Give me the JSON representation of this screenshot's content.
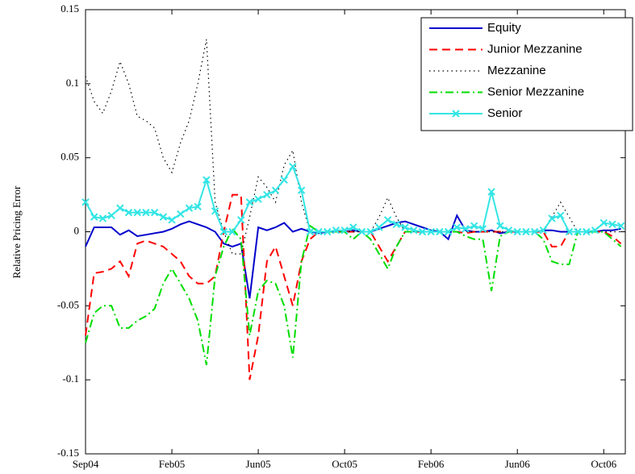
{
  "chart_data": {
    "type": "line",
    "y_label": "Relative Pricing Error",
    "categories": [
      "Sep04",
      null,
      null,
      null,
      null,
      null,
      null,
      null,
      null,
      null,
      "Feb05",
      null,
      null,
      null,
      null,
      null,
      null,
      null,
      null,
      null,
      "Jun05",
      null,
      null,
      null,
      null,
      null,
      null,
      null,
      null,
      null,
      "Oct05",
      null,
      null,
      null,
      null,
      null,
      null,
      null,
      null,
      null,
      "Feb06",
      null,
      null,
      null,
      null,
      null,
      null,
      null,
      null,
      null,
      "Jun06",
      null,
      null,
      null,
      null,
      null,
      null,
      null,
      null,
      null,
      "Oct06",
      null,
      null
    ],
    "ylim": [
      -0.15,
      0.15
    ],
    "yticks": [
      -0.15,
      -0.1,
      -0.05,
      0,
      0.05,
      0.1,
      0.15
    ],
    "legend": "upper right",
    "series": [
      {
        "name": "Equity",
        "color": "#0000cc",
        "linestyle": "solid",
        "values": [
          -0.01,
          0.003,
          0.003,
          0.003,
          -0.002,
          0.001,
          -0.003,
          -0.002,
          -0.001,
          0,
          0.002,
          0.005,
          0.007,
          0.005,
          0.003,
          0,
          -0.008,
          -0.01,
          -0.008,
          -0.045,
          0.003,
          0.001,
          0.003,
          0.006,
          0,
          0.002,
          0,
          -0.001,
          0,
          0,
          0,
          0.001,
          0,
          0,
          0.002,
          0.004,
          0.006,
          0.007,
          0.005,
          0.003,
          0.001,
          0,
          -0.005,
          0.011,
          0.001,
          0,
          0,
          0.001,
          -0.001,
          0,
          0,
          0,
          0,
          0.001,
          0.001,
          0,
          0,
          0,
          0,
          0,
          0.001,
          0.001,
          0.002
        ]
      },
      {
        "name": "Junior Mezzanine",
        "color": "#ff0000",
        "linestyle": "dashed",
        "values": [
          -0.07,
          -0.028,
          -0.027,
          -0.025,
          -0.02,
          -0.03,
          -0.008,
          -0.006,
          -0.008,
          -0.01,
          -0.015,
          -0.02,
          -0.03,
          -0.035,
          -0.035,
          -0.03,
          0,
          0.025,
          0.025,
          -0.1,
          -0.07,
          -0.02,
          -0.01,
          -0.03,
          -0.05,
          -0.02,
          -0.005,
          0,
          0,
          0,
          0,
          0,
          0,
          0,
          -0.01,
          -0.02,
          -0.01,
          0,
          0,
          0,
          0,
          0,
          0,
          0,
          -0.001,
          0,
          0,
          0,
          0,
          0,
          0,
          0,
          0,
          0,
          -0.01,
          -0.01,
          0,
          0,
          0,
          0,
          0,
          -0.003,
          -0.008
        ]
      },
      {
        "name": "Mezzanine",
        "color": "#000000",
        "linestyle": "dotted",
        "values": [
          0.105,
          0.088,
          0.08,
          0.095,
          0.115,
          0.1,
          0.078,
          0.075,
          0.07,
          0.05,
          0.04,
          0.06,
          0.075,
          0.1,
          0.13,
          0.02,
          0,
          -0.015,
          -0.015,
          0.01,
          0.037,
          0.03,
          0.02,
          0.045,
          0.055,
          0.02,
          0,
          0,
          0,
          0,
          0,
          0,
          0,
          0,
          0.01,
          0.023,
          0.01,
          0,
          0,
          0,
          0,
          0,
          0,
          0,
          0,
          0,
          0,
          0,
          0,
          0,
          0,
          0,
          0,
          0,
          0.01,
          0.02,
          0.01,
          0,
          0,
          0,
          0,
          0,
          0
        ]
      },
      {
        "name": "Senior Mezzanine",
        "color": "#00dd00",
        "linestyle": "dashdot",
        "values": [
          -0.075,
          -0.055,
          -0.05,
          -0.05,
          -0.065,
          -0.065,
          -0.06,
          -0.057,
          -0.052,
          -0.035,
          -0.025,
          -0.035,
          -0.045,
          -0.06,
          -0.09,
          -0.03,
          -0.01,
          0.002,
          -0.005,
          -0.07,
          -0.04,
          -0.033,
          -0.035,
          -0.05,
          -0.085,
          -0.02,
          0.004,
          0,
          0,
          0,
          0,
          -0.005,
          0,
          -0.005,
          -0.015,
          -0.025,
          -0.01,
          0,
          0,
          0,
          0,
          0,
          0,
          0,
          -0.003,
          -0.005,
          -0.005,
          -0.04,
          -0.003,
          0,
          0,
          0,
          0,
          -0.005,
          -0.02,
          -0.022,
          -0.022,
          0,
          0,
          0,
          0,
          -0.005,
          -0.01
        ]
      },
      {
        "name": "Senior",
        "color": "#33e5e5",
        "linestyle": "solid",
        "marker": "x",
        "values": [
          0.02,
          0.01,
          0.009,
          0.011,
          0.016,
          0.013,
          0.013,
          0.013,
          0.013,
          0.01,
          0.008,
          0.012,
          0.016,
          0.017,
          0.035,
          0.014,
          0,
          0,
          0.008,
          0.02,
          0.022,
          0.025,
          0.028,
          0.035,
          0.044,
          0.028,
          0,
          0,
          0,
          0.001,
          0.001,
          0.003,
          0,
          0,
          0.003,
          0.008,
          0.005,
          0.003,
          0.001,
          0,
          0,
          0,
          0,
          0.003,
          0.002,
          0.004,
          0.002,
          0.027,
          0.004,
          0.001,
          0,
          0,
          0,
          0.001,
          0.009,
          0.011,
          0,
          0,
          0,
          0.001,
          0.006,
          0.005,
          0.004
        ]
      }
    ]
  }
}
